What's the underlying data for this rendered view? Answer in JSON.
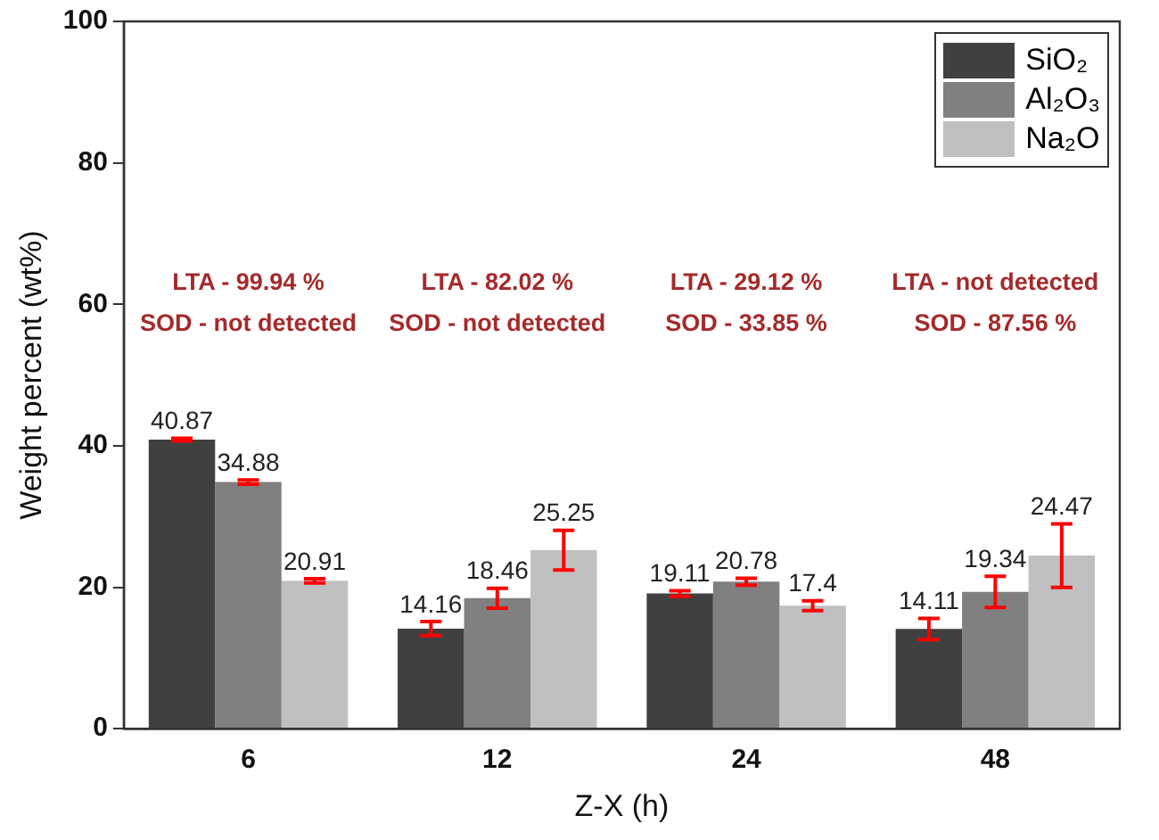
{
  "chart_data": {
    "type": "bar",
    "xlabel": "Z-X (h)",
    "ylabel": "Weight percent (wt%)",
    "categories": [
      "6",
      "12",
      "24",
      "48"
    ],
    "series": [
      {
        "name": "SiO₂",
        "color": "#404040",
        "values": [
          40.87,
          14.16,
          19.11,
          14.11
        ],
        "errors": [
          0.2,
          1.0,
          0.4,
          1.5
        ]
      },
      {
        "name": "Al₂O₃",
        "color": "#808080",
        "values": [
          34.88,
          18.46,
          20.78,
          19.34
        ],
        "errors": [
          0.3,
          1.4,
          0.5,
          2.2
        ]
      },
      {
        "name": "Na₂O",
        "color": "#c0c0c0",
        "values": [
          20.91,
          25.25,
          17.4,
          24.47
        ],
        "errors": [
          0.3,
          2.8,
          0.7,
          4.5
        ]
      }
    ],
    "ylim": [
      0,
      100
    ],
    "yticks": [
      0,
      20,
      40,
      60,
      80,
      100
    ],
    "grid": false,
    "legend": "top right",
    "data_labels": true,
    "annotations": [
      "LTA - 99.94 %",
      "SOD - not detected",
      "LTA - 82.02 %",
      "SOD - not detected",
      "LTA - 29.12 %",
      "SOD - 33.85 %",
      "LTA - not detected",
      "SOD - 87.56 %"
    ]
  }
}
